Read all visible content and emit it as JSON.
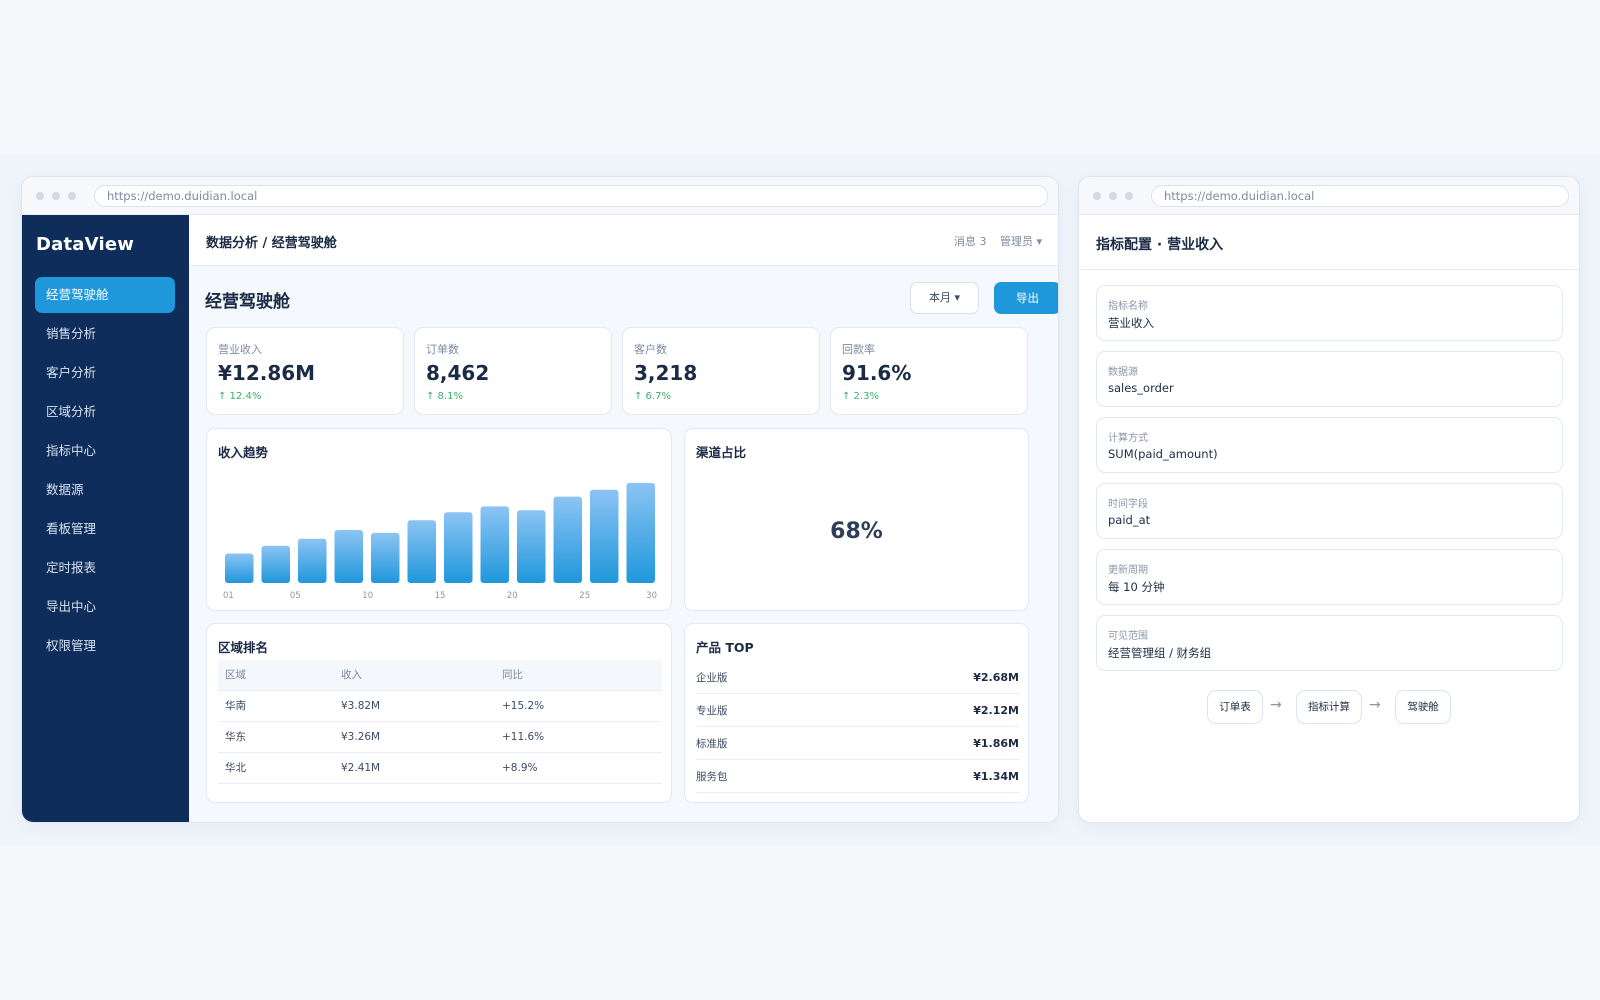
{
  "browser": {
    "url": "https://demo.duidian.local"
  },
  "sidebar": {
    "brand": "DataView",
    "items": [
      {
        "label": "经营驾驶舱",
        "active": true
      },
      {
        "label": "销售分析"
      },
      {
        "label": "客户分析"
      },
      {
        "label": "区域分析"
      },
      {
        "label": "指标中心"
      },
      {
        "label": "数据源"
      },
      {
        "label": "看板管理"
      },
      {
        "label": "定时报表"
      },
      {
        "label": "导出中心"
      },
      {
        "label": "权限管理"
      }
    ]
  },
  "topbar": {
    "breadcrumb": "数据分析 / 经营驾驶舱",
    "messages": "消息 3",
    "user": "管理员 ▾"
  },
  "page": {
    "title": "经营驾驶舱",
    "period_label": "本月 ▾",
    "export_label": "导出"
  },
  "kpis": [
    {
      "label": "营业收入",
      "value": "¥12.86M",
      "delta": "↑ 12.4%"
    },
    {
      "label": "订单数",
      "value": "8,462",
      "delta": "↑ 8.1%"
    },
    {
      "label": "客户数",
      "value": "3,218",
      "delta": "↑ 6.7%"
    },
    {
      "label": "回款率",
      "value": "91.6%",
      "delta": "↑ 2.3%"
    }
  ],
  "revenue_card": {
    "title": "收入趋势"
  },
  "channel_card": {
    "title": "渠道占比",
    "value": "68%"
  },
  "chart_data": {
    "type": "bar",
    "categories": [
      "01",
      "",
      "05",
      "",
      "10",
      "",
      "15",
      "",
      "20",
      "",
      "25",
      "30"
    ],
    "tick_labels": [
      "01",
      "05",
      "10",
      "15",
      "20",
      "25",
      "30"
    ],
    "values": [
      30,
      38,
      45,
      54,
      51,
      64,
      72,
      78,
      74,
      88,
      95,
      102
    ],
    "ylim": [
      0,
      110
    ],
    "grid": false,
    "colors": {
      "bar_top": "#8cc4f4",
      "bar_bottom": "#1f97db"
    }
  },
  "region_card": {
    "title": "区域排名",
    "columns": [
      "区域",
      "收入",
      "同比"
    ],
    "rows": [
      [
        "华南",
        "¥3.82M",
        "+15.2%"
      ],
      [
        "华东",
        "¥3.26M",
        "+11.6%"
      ],
      [
        "华北",
        "¥2.41M",
        "+8.9%"
      ]
    ]
  },
  "product_card": {
    "title": "产品 TOP",
    "items": [
      {
        "name": "企业版",
        "value": "¥2.68M"
      },
      {
        "name": "专业版",
        "value": "¥2.12M"
      },
      {
        "name": "标准版",
        "value": "¥1.86M"
      },
      {
        "name": "服务包",
        "value": "¥1.34M"
      }
    ]
  },
  "config": {
    "title": "指标配置 · 营业收入",
    "fields": [
      {
        "label": "指标名称",
        "value": "营业收入"
      },
      {
        "label": "数据源",
        "value": "sales_order"
      },
      {
        "label": "计算方式",
        "value": "SUM(paid_amount)"
      },
      {
        "label": "时间字段",
        "value": "paid_at"
      },
      {
        "label": "更新周期",
        "value": "每 10 分钟"
      },
      {
        "label": "可见范围",
        "value": "经营管理组 / 财务组"
      }
    ],
    "flow": [
      "订单表",
      "指标计算",
      "驾驶舱"
    ],
    "flow_arrow": "→"
  },
  "colors": {
    "accent": "#1f97db",
    "sidebar_bg": "#0f2d5a",
    "positive": "#38b26a"
  }
}
